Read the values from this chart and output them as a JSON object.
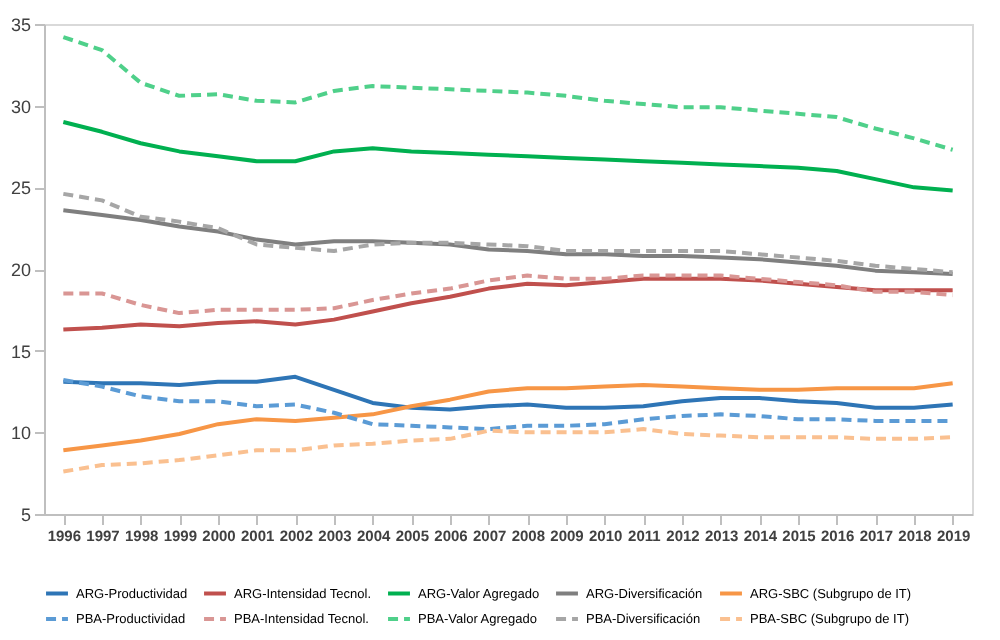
{
  "chart_data": {
    "type": "line",
    "categories": [
      "1996",
      "1997",
      "1998",
      "1999",
      "2000",
      "2001",
      "2002",
      "2003",
      "2004",
      "2005",
      "2006",
      "2007",
      "2008",
      "2009",
      "2010",
      "2011",
      "2012",
      "2013",
      "2014",
      "2015",
      "2016",
      "2017",
      "2018",
      "2019"
    ],
    "ylim": [
      5,
      35
    ],
    "yticks": [
      5,
      10,
      15,
      20,
      25,
      30,
      35
    ],
    "grid": false,
    "legend": "bottom",
    "series": [
      {
        "name": "ARG-Productividad",
        "color": "#2e75b6",
        "line_style": "solid",
        "values": [
          13.1,
          13.0,
          13.0,
          12.9,
          13.1,
          13.1,
          13.4,
          12.6,
          11.8,
          11.5,
          11.4,
          11.6,
          11.7,
          11.5,
          11.5,
          11.6,
          11.9,
          12.1,
          12.1,
          11.9,
          11.8,
          11.5,
          11.5,
          11.7
        ]
      },
      {
        "name": "ARG-Intensidad Tecnol.",
        "color": "#c0504d",
        "line_style": "solid",
        "values": [
          16.3,
          16.4,
          16.6,
          16.5,
          16.7,
          16.8,
          16.6,
          16.9,
          17.4,
          17.9,
          18.3,
          18.8,
          19.1,
          19.0,
          19.2,
          19.4,
          19.4,
          19.4,
          19.3,
          19.1,
          18.9,
          18.7,
          18.7,
          18.7
        ]
      },
      {
        "name": "ARG-Valor Agregado",
        "color": "#00b050",
        "line_style": "solid",
        "values": [
          29.0,
          28.4,
          27.7,
          27.2,
          26.9,
          26.6,
          26.6,
          27.2,
          27.4,
          27.2,
          27.1,
          27.0,
          26.9,
          26.8,
          26.7,
          26.6,
          26.5,
          26.4,
          26.3,
          26.2,
          26.0,
          25.5,
          25.0,
          24.8
        ]
      },
      {
        "name": "ARG-Diversificación",
        "color": "#7f7f7f",
        "line_style": "solid",
        "values": [
          23.6,
          23.3,
          23.0,
          22.6,
          22.3,
          21.8,
          21.5,
          21.7,
          21.7,
          21.6,
          21.5,
          21.2,
          21.1,
          20.9,
          20.9,
          20.8,
          20.8,
          20.7,
          20.6,
          20.4,
          20.2,
          19.9,
          19.8,
          19.7
        ]
      },
      {
        "name": "ARG-SBC (Subgrupo de IT)",
        "color": "#f79646",
        "line_style": "solid",
        "values": [
          8.9,
          9.2,
          9.5,
          9.9,
          10.5,
          10.8,
          10.7,
          10.9,
          11.1,
          11.6,
          12.0,
          12.5,
          12.7,
          12.7,
          12.8,
          12.9,
          12.8,
          12.7,
          12.6,
          12.6,
          12.7,
          12.7,
          12.7,
          13.0
        ]
      },
      {
        "name": "PBA-Productividad",
        "color": "#5b9bd5",
        "line_style": "dashed",
        "values": [
          13.2,
          12.8,
          12.2,
          11.9,
          11.9,
          11.6,
          11.7,
          11.2,
          10.5,
          10.4,
          10.3,
          10.2,
          10.4,
          10.4,
          10.5,
          10.8,
          11.0,
          11.1,
          11.0,
          10.8,
          10.8,
          10.7,
          10.7,
          10.7
        ]
      },
      {
        "name": "PBA-Intensidad Tecnol.",
        "color": "#d99694",
        "line_style": "dashed",
        "values": [
          18.5,
          18.5,
          17.8,
          17.3,
          17.5,
          17.5,
          17.5,
          17.6,
          18.1,
          18.5,
          18.8,
          19.3,
          19.6,
          19.4,
          19.4,
          19.6,
          19.6,
          19.6,
          19.4,
          19.2,
          19.0,
          18.6,
          18.6,
          18.4
        ]
      },
      {
        "name": "PBA-Valor Agregado",
        "color": "#4fd08a",
        "line_style": "dashed",
        "values": [
          34.2,
          33.4,
          31.4,
          30.6,
          30.7,
          30.3,
          30.2,
          30.9,
          31.2,
          31.1,
          31.0,
          30.9,
          30.8,
          30.6,
          30.3,
          30.1,
          29.9,
          29.9,
          29.7,
          29.5,
          29.3,
          28.6,
          28.0,
          27.3
        ]
      },
      {
        "name": "PBA-Diversificación",
        "color": "#a6a6a6",
        "line_style": "dashed",
        "values": [
          24.6,
          24.2,
          23.2,
          22.9,
          22.5,
          21.5,
          21.3,
          21.1,
          21.5,
          21.6,
          21.6,
          21.5,
          21.4,
          21.1,
          21.1,
          21.1,
          21.1,
          21.1,
          20.9,
          20.7,
          20.5,
          20.2,
          20.0,
          19.8
        ]
      },
      {
        "name": "PBA-SBC (Subgrupo de IT)",
        "color": "#fac090",
        "line_style": "dashed",
        "values": [
          7.6,
          8.0,
          8.1,
          8.3,
          8.6,
          8.9,
          8.9,
          9.2,
          9.3,
          9.5,
          9.6,
          10.1,
          10.0,
          10.0,
          10.0,
          10.2,
          9.9,
          9.8,
          9.7,
          9.7,
          9.7,
          9.6,
          9.6,
          9.7
        ]
      }
    ]
  }
}
